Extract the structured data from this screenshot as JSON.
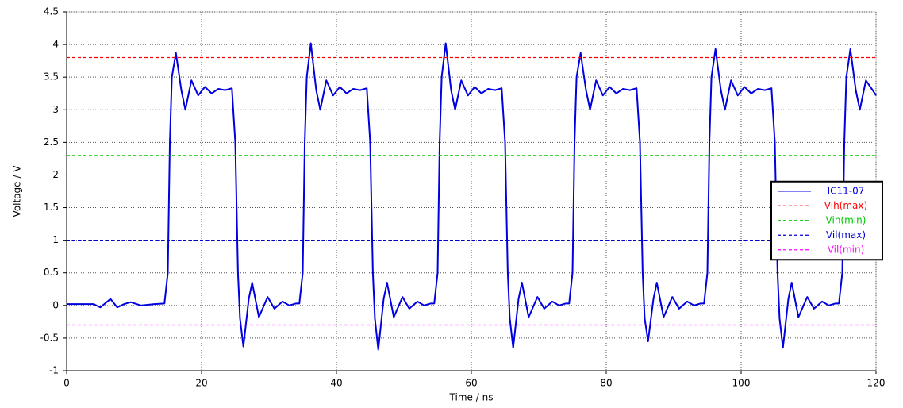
{
  "chart_data": {
    "type": "line",
    "xlabel": "Time / ns",
    "ylabel": "Voltage / V",
    "xlim": [
      0,
      120
    ],
    "xticks": [
      0,
      20,
      40,
      60,
      80,
      100,
      120
    ],
    "ylim": [
      -1,
      4.5
    ],
    "yticks": [
      -1,
      -0.5,
      0,
      0.5,
      1,
      1.5,
      2,
      2.5,
      3,
      3.5,
      4,
      4.5
    ],
    "grid": true,
    "legend_position": "right",
    "series": [
      {
        "name": "IC11-07",
        "color": "#0000e0",
        "line_style": "solid",
        "x": [
          0,
          4,
          5,
          6.5,
          7.5,
          8.5,
          9.5,
          11,
          13,
          14.5,
          15,
          15.3,
          15.6,
          16.2,
          17,
          17.6,
          18.5,
          19.5,
          20.5,
          21.5,
          22.5,
          23.5,
          24.5,
          25,
          25.4,
          25.7,
          26.2,
          27,
          27.5,
          28.5,
          29.8,
          30.8,
          32,
          33,
          34,
          34.5,
          35,
          35.3,
          35.6,
          36.2,
          37,
          37.6,
          38.5,
          39.5,
          40.5,
          41.5,
          42.5,
          43.5,
          44.5,
          45,
          45.4,
          45.7,
          46.2,
          47,
          47.5,
          48.5,
          49.8,
          50.8,
          52,
          53,
          54,
          54.5,
          55,
          55.3,
          55.6,
          56.2,
          57,
          57.6,
          58.5,
          59.5,
          60.5,
          61.5,
          62.5,
          63.5,
          64.5,
          65,
          65.4,
          65.7,
          66.2,
          67,
          67.5,
          68.5,
          69.8,
          70.8,
          72,
          73,
          74,
          74.5,
          75,
          75.3,
          75.6,
          76.2,
          77,
          77.6,
          78.5,
          79.5,
          80.5,
          81.5,
          82.5,
          83.5,
          84.5,
          85,
          85.4,
          85.7,
          86.2,
          87,
          87.5,
          88.5,
          89.8,
          90.8,
          92,
          93,
          94,
          94.5,
          95,
          95.3,
          95.6,
          96.2,
          97,
          97.6,
          98.5,
          99.5,
          100.5,
          101.5,
          102.5,
          103.5,
          104.5,
          105,
          105.4,
          105.7,
          106.2,
          107,
          107.5,
          108.5,
          109.8,
          110.8,
          112,
          113,
          114,
          114.5,
          115,
          115.3,
          115.6,
          116.2,
          117,
          117.6,
          118.5,
          119.5,
          120
        ],
        "values": [
          0.02,
          0.02,
          -0.03,
          0.1,
          -0.03,
          0.02,
          0.05,
          0.0,
          0.02,
          0.03,
          0.5,
          2.5,
          3.5,
          3.87,
          3.3,
          3.0,
          3.45,
          3.22,
          3.35,
          3.25,
          3.32,
          3.3,
          3.33,
          2.5,
          0.5,
          -0.2,
          -0.63,
          0.1,
          0.35,
          -0.18,
          0.13,
          -0.05,
          0.06,
          0.0,
          0.03,
          0.03,
          0.5,
          2.5,
          3.5,
          4.02,
          3.3,
          3.0,
          3.45,
          3.22,
          3.35,
          3.25,
          3.32,
          3.3,
          3.33,
          2.5,
          0.5,
          -0.2,
          -0.68,
          0.1,
          0.35,
          -0.18,
          0.13,
          -0.05,
          0.06,
          0.0,
          0.03,
          0.03,
          0.5,
          2.5,
          3.5,
          4.02,
          3.3,
          3.0,
          3.45,
          3.22,
          3.35,
          3.25,
          3.32,
          3.3,
          3.33,
          2.5,
          0.5,
          -0.2,
          -0.65,
          0.1,
          0.35,
          -0.18,
          0.13,
          -0.05,
          0.06,
          0.0,
          0.03,
          0.03,
          0.5,
          2.5,
          3.5,
          3.87,
          3.3,
          3.0,
          3.45,
          3.22,
          3.35,
          3.25,
          3.32,
          3.3,
          3.33,
          2.5,
          0.5,
          -0.2,
          -0.55,
          0.1,
          0.35,
          -0.18,
          0.13,
          -0.05,
          0.06,
          0.0,
          0.03,
          0.03,
          0.5,
          2.5,
          3.5,
          3.93,
          3.3,
          3.0,
          3.45,
          3.22,
          3.35,
          3.25,
          3.32,
          3.3,
          3.33,
          2.5,
          0.5,
          -0.2,
          -0.65,
          0.1,
          0.35,
          -0.18,
          0.13,
          -0.05,
          0.06,
          0.0,
          0.03,
          0.03,
          0.5,
          2.5,
          3.5,
          3.93,
          3.3,
          3.0,
          3.45,
          3.3,
          3.22
        ]
      },
      {
        "name": "Vih(max)",
        "color": "#ff0000",
        "line_style": "dashed",
        "x": [
          0,
          120
        ],
        "values": [
          3.8,
          3.8
        ]
      },
      {
        "name": "Vih(min)",
        "color": "#00c800",
        "line_style": "dashed",
        "x": [
          0,
          120
        ],
        "values": [
          2.3,
          2.3
        ]
      },
      {
        "name": "Vil(max)",
        "color": "#0000cc",
        "line_style": "dashed",
        "x": [
          0,
          120
        ],
        "values": [
          1,
          1
        ]
      },
      {
        "name": "Vil(min)",
        "color": "#ff00ff",
        "line_style": "dashed",
        "x": [
          0,
          120
        ],
        "values": [
          -0.3,
          -0.3
        ]
      }
    ]
  }
}
